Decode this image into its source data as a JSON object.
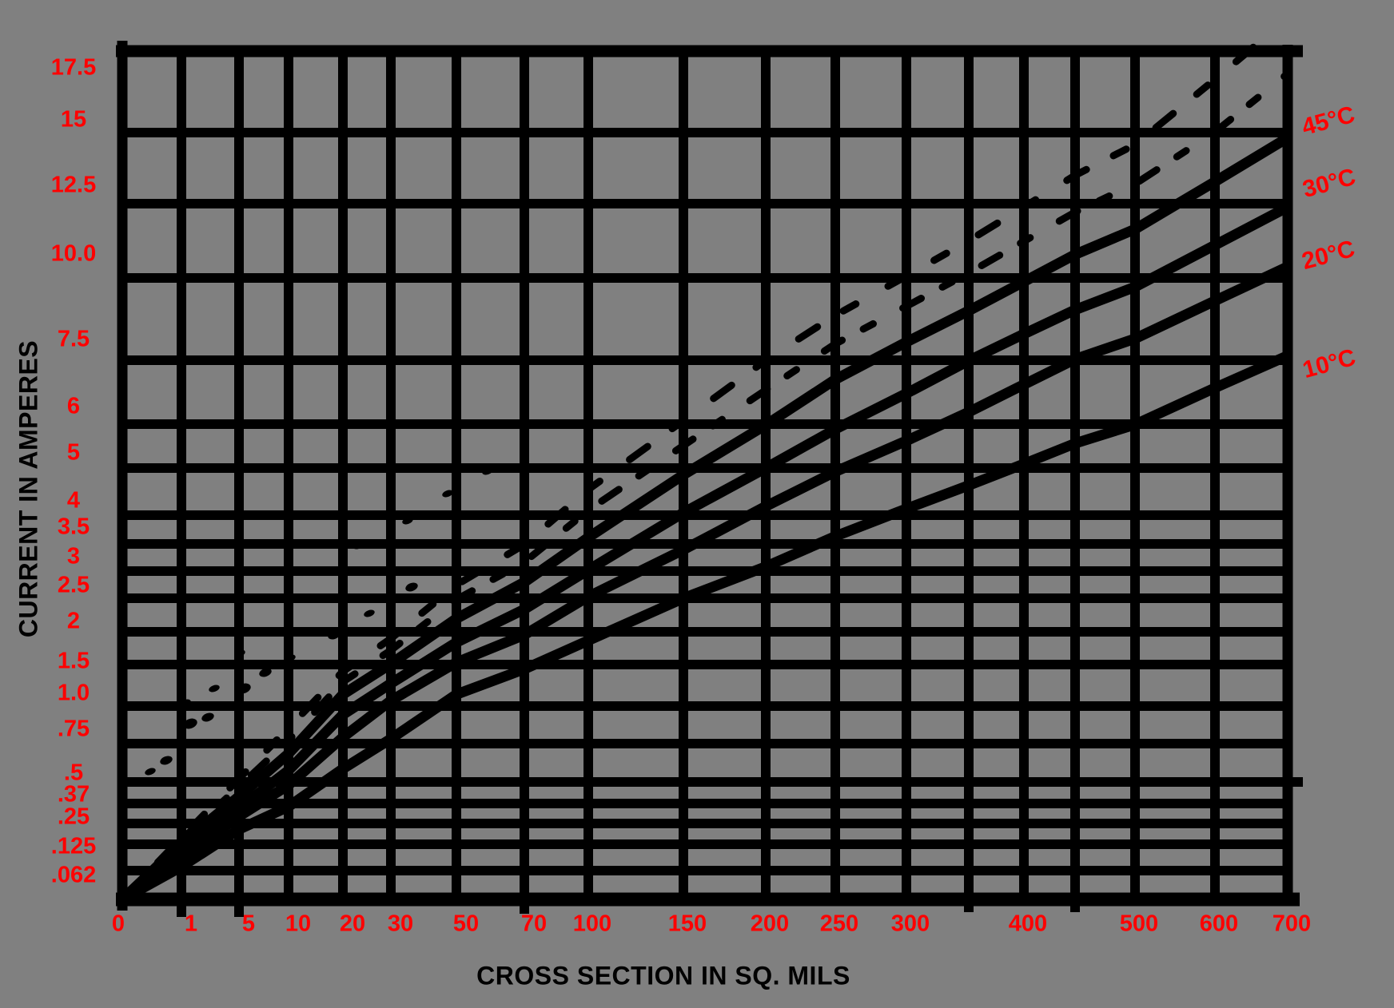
{
  "page": {
    "background_color": "#808080"
  },
  "chart_data": {
    "type": "line",
    "title": "",
    "xlabel": "CROSS SECTION IN SQ. MILS",
    "ylabel": "CURRENT IN AMPERES",
    "x_range": [
      0,
      700
    ],
    "y_range": [
      0,
      17.5
    ],
    "grid": "both-axes-major",
    "scale_note": "non-linear (square-root-like) axes, gridline at every labeled tick",
    "colors": {
      "background": "#808080",
      "grid_and_curves": "#000000",
      "tick_labels": "#ff0000",
      "axis_titles": "#000000",
      "curve_labels": "#ff0000"
    },
    "x_tick_values": [
      0,
      1,
      5,
      10,
      20,
      30,
      50,
      70,
      100,
      150,
      200,
      250,
      300,
      350,
      400,
      450,
      500,
      600,
      700
    ],
    "x_tick_labels": [
      "0",
      "1",
      "5",
      "10",
      "20",
      "30",
      "50",
      "70",
      "100",
      "150",
      "200",
      "250",
      "300",
      "",
      "400",
      "",
      "500",
      "600",
      "700"
    ],
    "y_tick_values": [
      17.5,
      15,
      12.5,
      10,
      7.5,
      6,
      5,
      4,
      3.5,
      3,
      2.5,
      2,
      1.5,
      1,
      0.75,
      0.5,
      0.37,
      0.25,
      0.125,
      0.062
    ],
    "y_tick_labels": [
      "17.5",
      "15",
      "12.5",
      "10.0",
      "7.5",
      "6",
      "5",
      "4",
      "3.5",
      "3",
      "2.5",
      "2",
      "1.5",
      "1.0",
      ".75",
      ".5",
      ".37",
      ".25",
      ".125",
      ".062"
    ],
    "curve_labels": [
      "45°C",
      "30°C",
      "20°C",
      "10°C"
    ],
    "series": [
      {
        "id": "curve-10c",
        "name": "10°C",
        "style": "solid",
        "x": [
          0,
          1,
          5,
          10,
          20,
          30,
          50,
          70,
          100,
          150,
          200,
          250,
          300,
          350,
          400,
          450,
          500,
          600,
          700
        ],
        "y": [
          0,
          0.07,
          0.21,
          0.35,
          0.58,
          0.78,
          1.13,
          1.44,
          1.86,
          2.5,
          3.08,
          3.63,
          4.13,
          4.62,
          5.09,
          5.55,
          5.99,
          6.83,
          7.63
        ]
      },
      {
        "id": "curve-20c",
        "name": "20°C",
        "style": "solid",
        "x": [
          0,
          1,
          5,
          10,
          20,
          30,
          50,
          70,
          100,
          150,
          200,
          250,
          300,
          350,
          400,
          450,
          500,
          600,
          700
        ],
        "y": [
          0,
          0.09,
          0.29,
          0.48,
          0.79,
          1.06,
          1.53,
          1.95,
          2.53,
          3.39,
          4.18,
          4.92,
          5.61,
          6.27,
          6.91,
          7.53,
          8.12,
          9.27,
          10.36
        ]
      },
      {
        "id": "curve-30c",
        "name": "30°C",
        "style": "solid",
        "x": [
          0,
          1,
          5,
          10,
          20,
          30,
          50,
          70,
          100,
          150,
          200,
          250,
          300,
          350,
          400,
          450,
          500,
          600,
          700
        ],
        "y": [
          0,
          0.11,
          0.34,
          0.57,
          0.94,
          1.26,
          1.83,
          2.33,
          3.02,
          4.05,
          5.0,
          5.88,
          6.7,
          7.49,
          8.26,
          8.99,
          9.71,
          11.07,
          12.38
        ]
      },
      {
        "id": "curve-45c",
        "name": "45°C",
        "style": "solid",
        "x": [
          0,
          1,
          5,
          10,
          20,
          30,
          50,
          70,
          100,
          150,
          200,
          250,
          300,
          350,
          400,
          450,
          500,
          600,
          700
        ],
        "y": [
          0,
          0.13,
          0.41,
          0.68,
          1.13,
          1.51,
          2.19,
          2.79,
          3.61,
          4.85,
          5.98,
          7.03,
          8.02,
          8.96,
          9.88,
          10.76,
          11.61,
          13.25,
          14.81
        ]
      },
      {
        "id": "curve-dashed-upper-1",
        "name": "unlabeled-dashed-1",
        "style": "dashed",
        "x": [
          0,
          1,
          5,
          10,
          20,
          30,
          50,
          70,
          100,
          150,
          200,
          250,
          300,
          350,
          400,
          450,
          500,
          600,
          700
        ],
        "y": [
          0,
          0.15,
          0.47,
          0.77,
          1.28,
          1.71,
          2.48,
          3.16,
          4.1,
          5.5,
          6.78,
          7.97,
          9.1,
          10.16,
          11.2,
          12.2,
          13.17,
          15.02,
          16.79
        ]
      },
      {
        "id": "curve-dashed-upper-2",
        "name": "unlabeled-dashed-2",
        "style": "dashed",
        "x": [
          0,
          1,
          5,
          10,
          20,
          30,
          50,
          70,
          100,
          150,
          200,
          250,
          300,
          350,
          400,
          450,
          500,
          600,
          700
        ],
        "y": [
          0,
          0.16,
          0.52,
          0.85,
          1.41,
          1.89,
          2.74,
          3.49,
          4.53,
          6.08,
          7.5,
          8.82,
          10.06,
          11.22,
          12.38,
          13.47,
          14.56,
          16.61,
          18.56
        ]
      }
    ]
  }
}
